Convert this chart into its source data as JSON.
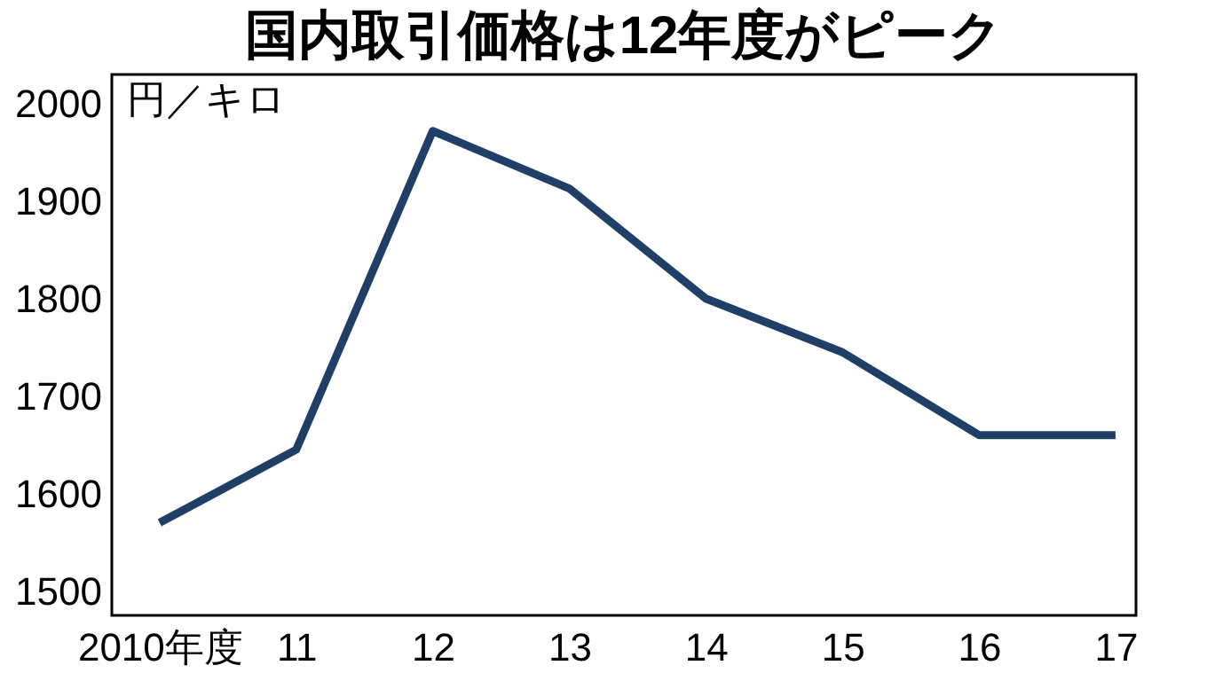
{
  "chart_data": {
    "type": "line",
    "title": "国内取引価格は12年度がピーク",
    "ylabel": "円／キロ",
    "categories": [
      "2010年度",
      "11",
      "12",
      "13",
      "14",
      "15",
      "16",
      "17"
    ],
    "series": [
      {
        "color": "#1f3f66",
        "values": [
          1570,
          1645,
          1972,
          1913,
          1800,
          1745,
          1660,
          1660
        ]
      }
    ],
    "ylim": [
      1475,
      2030
    ],
    "yticks": [
      1500,
      1600,
      1700,
      1800,
      1900,
      2000
    ],
    "grid": false,
    "legend": false,
    "marker": "none",
    "line_style": "solid"
  }
}
